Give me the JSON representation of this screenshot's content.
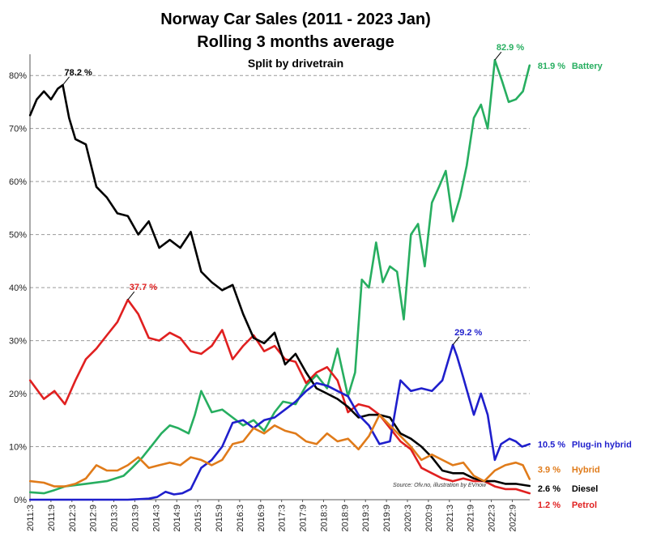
{
  "chart_data": {
    "type": "line",
    "title": "Norway Car Sales (2011 - 2023 Jan)",
    "subtitle": "Rolling 3 months average",
    "subtitle2": "Split by drivetrain",
    "source": "Source: Ofv.no, illustration by EVnow",
    "ylim": [
      0,
      84
    ],
    "y_ticks": [
      0,
      10,
      20,
      30,
      40,
      50,
      60,
      70,
      80
    ],
    "y_tick_labels": [
      "0%",
      "10%",
      "20%",
      "30%",
      "40%",
      "50%",
      "60%",
      "70%",
      "80%"
    ],
    "x_ticks": [
      2011.167,
      2011.667,
      2012.167,
      2012.667,
      2013.167,
      2013.667,
      2014.167,
      2014.667,
      2015.167,
      2015.667,
      2016.167,
      2016.667,
      2017.167,
      2017.667,
      2018.167,
      2018.667,
      2019.167,
      2019.667,
      2020.167,
      2020.667,
      2021.167,
      2021.667,
      2022.167,
      2022.667
    ],
    "x_tick_labels": [
      "2011:3",
      "2011:9",
      "2012:3",
      "2012:9",
      "2013:3",
      "2013:9",
      "2014:3",
      "2014:9",
      "2015:3",
      "2015:9",
      "2016:3",
      "2016:9",
      "2017:3",
      "2017:9",
      "2018:3",
      "2018:9",
      "2019:3",
      "2019:9",
      "2020:3",
      "2020:9",
      "2021:3",
      "2021:9",
      "2022:3",
      "2022:9"
    ],
    "xlim": [
      2011.167,
      2023.083
    ],
    "grid": true,
    "series": [
      {
        "name": "Battery",
        "color": "#27ae60",
        "x": [
          2011.17,
          2011.5,
          2011.75,
          2012.0,
          2012.5,
          2013.0,
          2013.4,
          2013.6,
          2013.85,
          2014.1,
          2014.3,
          2014.5,
          2014.7,
          2014.95,
          2015.1,
          2015.25,
          2015.5,
          2015.75,
          2016.0,
          2016.25,
          2016.5,
          2016.75,
          2017.0,
          2017.2,
          2017.5,
          2017.75,
          2018.0,
          2018.25,
          2018.5,
          2018.75,
          2018.92,
          2019.08,
          2019.25,
          2019.42,
          2019.58,
          2019.75,
          2019.92,
          2020.08,
          2020.25,
          2020.42,
          2020.58,
          2020.75,
          2020.92,
          2021.08,
          2021.25,
          2021.42,
          2021.58,
          2021.75,
          2021.92,
          2022.08,
          2022.25,
          2022.42,
          2022.58,
          2022.75,
          2022.92,
          2023.08
        ],
        "values": [
          1.4,
          1.2,
          1.8,
          2.5,
          3.0,
          3.5,
          4.5,
          6.0,
          8.0,
          10.5,
          12.5,
          14.0,
          13.5,
          12.5,
          16.0,
          20.5,
          16.5,
          17.0,
          15.5,
          14.0,
          15.0,
          13.0,
          16.5,
          18.5,
          18.0,
          21.5,
          23.5,
          21.0,
          28.5,
          19.5,
          24.0,
          41.5,
          40.0,
          48.5,
          41.0,
          44.0,
          43.0,
          34.0,
          50.0,
          52.0,
          44.0,
          56.0,
          59.0,
          62.0,
          52.5,
          57.0,
          63.0,
          72.0,
          74.5,
          70.0,
          82.9,
          79.0,
          75.0,
          75.5,
          77.0,
          81.9
        ]
      },
      {
        "name": "Petrol",
        "color": "#e02020",
        "x": [
          2011.17,
          2011.5,
          2011.75,
          2012.0,
          2012.25,
          2012.5,
          2012.75,
          2013.0,
          2013.25,
          2013.5,
          2013.75,
          2014.0,
          2014.25,
          2014.5,
          2014.75,
          2015.0,
          2015.25,
          2015.5,
          2015.75,
          2016.0,
          2016.25,
          2016.5,
          2016.75,
          2017.0,
          2017.25,
          2017.5,
          2017.75,
          2018.0,
          2018.25,
          2018.5,
          2018.75,
          2019.0,
          2019.25,
          2019.5,
          2019.75,
          2020.0,
          2020.25,
          2020.5,
          2020.75,
          2021.0,
          2021.25,
          2021.5,
          2021.75,
          2022.0,
          2022.25,
          2022.5,
          2022.75,
          2023.08
        ],
        "values": [
          22.5,
          19.0,
          20.5,
          18.0,
          22.5,
          26.5,
          28.5,
          31.0,
          33.5,
          37.7,
          35.0,
          30.5,
          30.0,
          31.5,
          30.5,
          28.0,
          27.5,
          29.0,
          32.0,
          26.5,
          29.0,
          31.0,
          28.0,
          29.0,
          26.5,
          26.0,
          22.0,
          24.0,
          25.0,
          22.5,
          16.5,
          18.0,
          17.5,
          16.0,
          13.5,
          11.0,
          9.5,
          6.0,
          5.0,
          4.0,
          3.5,
          4.0,
          3.5,
          3.5,
          2.5,
          2.0,
          2.0,
          1.2
        ]
      },
      {
        "name": "Diesel",
        "color": "#000000",
        "x": [
          2011.17,
          2011.33,
          2011.5,
          2011.67,
          2011.83,
          2011.95,
          2012.1,
          2012.25,
          2012.5,
          2012.75,
          2013.0,
          2013.25,
          2013.5,
          2013.75,
          2014.0,
          2014.25,
          2014.5,
          2014.75,
          2015.0,
          2015.25,
          2015.5,
          2015.75,
          2016.0,
          2016.25,
          2016.5,
          2016.75,
          2017.0,
          2017.25,
          2017.5,
          2017.75,
          2018.0,
          2018.25,
          2018.5,
          2018.75,
          2019.0,
          2019.25,
          2019.5,
          2019.75,
          2020.0,
          2020.25,
          2020.5,
          2020.75,
          2021.0,
          2021.25,
          2021.5,
          2021.75,
          2022.0,
          2022.25,
          2022.5,
          2022.75,
          2023.08
        ],
        "values": [
          72.5,
          75.5,
          77.0,
          75.5,
          77.5,
          78.2,
          72.0,
          68.0,
          67.0,
          59.0,
          57.0,
          54.0,
          53.5,
          50.0,
          52.5,
          47.5,
          49.0,
          47.5,
          50.5,
          43.0,
          41.0,
          39.5,
          40.5,
          35.0,
          30.5,
          29.5,
          31.5,
          25.5,
          27.5,
          24.0,
          21.0,
          20.0,
          19.0,
          17.5,
          15.5,
          16.0,
          16.0,
          15.5,
          12.5,
          11.5,
          10.0,
          8.0,
          5.5,
          5.0,
          5.0,
          4.0,
          3.5,
          3.5,
          3.0,
          3.0,
          2.6
        ]
      },
      {
        "name": "Plug-in hybrid",
        "color": "#1f1fcc",
        "x": [
          2011.17,
          2013.5,
          2014.0,
          2014.2,
          2014.4,
          2014.6,
          2014.8,
          2015.0,
          2015.25,
          2015.5,
          2015.75,
          2016.0,
          2016.25,
          2016.5,
          2016.75,
          2017.0,
          2017.25,
          2017.5,
          2017.75,
          2018.0,
          2018.25,
          2018.5,
          2018.75,
          2019.0,
          2019.25,
          2019.5,
          2019.75,
          2020.0,
          2020.25,
          2020.5,
          2020.75,
          2021.0,
          2021.25,
          2021.35,
          2021.5,
          2021.75,
          2021.92,
          2022.08,
          2022.25,
          2022.4,
          2022.6,
          2022.75,
          2022.9,
          2023.08
        ],
        "values": [
          0,
          0,
          0.2,
          0.5,
          1.5,
          1.0,
          1.2,
          2.0,
          6.0,
          7.5,
          10.0,
          14.5,
          15.0,
          13.5,
          15.0,
          15.5,
          17.0,
          18.5,
          20.5,
          22.0,
          21.5,
          20.5,
          19.5,
          16.0,
          14.0,
          10.5,
          11.0,
          22.5,
          20.5,
          21.0,
          20.5,
          22.5,
          29.2,
          27.0,
          23.0,
          16.0,
          20.0,
          16.0,
          7.5,
          10.5,
          11.5,
          11.0,
          10.0,
          10.5
        ]
      },
      {
        "name": "Hybrid",
        "color": "#e07b1a",
        "x": [
          2011.17,
          2011.5,
          2011.75,
          2012.0,
          2012.25,
          2012.5,
          2012.75,
          2013.0,
          2013.25,
          2013.5,
          2013.75,
          2014.0,
          2014.25,
          2014.5,
          2014.75,
          2015.0,
          2015.25,
          2015.5,
          2015.75,
          2016.0,
          2016.25,
          2016.5,
          2016.75,
          2017.0,
          2017.25,
          2017.5,
          2017.75,
          2018.0,
          2018.25,
          2018.5,
          2018.75,
          2019.0,
          2019.25,
          2019.5,
          2019.75,
          2020.0,
          2020.25,
          2020.5,
          2020.75,
          2021.0,
          2021.25,
          2021.5,
          2021.75,
          2022.0,
          2022.25,
          2022.5,
          2022.75,
          2022.92,
          2023.08
        ],
        "values": [
          3.5,
          3.2,
          2.5,
          2.5,
          3.0,
          4.0,
          6.5,
          5.5,
          5.5,
          6.5,
          8.0,
          6.0,
          6.5,
          7.0,
          6.5,
          8.0,
          7.5,
          6.5,
          7.5,
          10.5,
          11.0,
          13.5,
          12.5,
          14.0,
          13.0,
          12.5,
          11.0,
          10.5,
          12.5,
          11.0,
          11.5,
          9.5,
          12.0,
          16.0,
          14.0,
          12.0,
          10.0,
          7.5,
          8.5,
          7.5,
          6.5,
          7.0,
          4.5,
          3.5,
          5.5,
          6.5,
          7.0,
          6.5,
          3.9
        ]
      }
    ],
    "annotations": [
      {
        "series": "Diesel",
        "text": "78.2 %"
      },
      {
        "series": "Petrol",
        "text": "37.7 %"
      },
      {
        "series": "Battery",
        "text": "82.9 %"
      },
      {
        "series": "Plug-in hybrid",
        "text": "29.2 %"
      }
    ],
    "end_labels": [
      {
        "series": "Battery",
        "text": "81.9 %",
        "name": "Battery"
      },
      {
        "series": "Plug-in hybrid",
        "text": "10.5 %",
        "name": "Plug-in hybrid"
      },
      {
        "series": "Hybrid",
        "text": "3.9 %",
        "name": "Hybrid"
      },
      {
        "series": "Diesel",
        "text": "2.6 %",
        "name": "Diesel"
      },
      {
        "series": "Petrol",
        "text": "1.2 %",
        "name": "Petrol"
      }
    ]
  }
}
